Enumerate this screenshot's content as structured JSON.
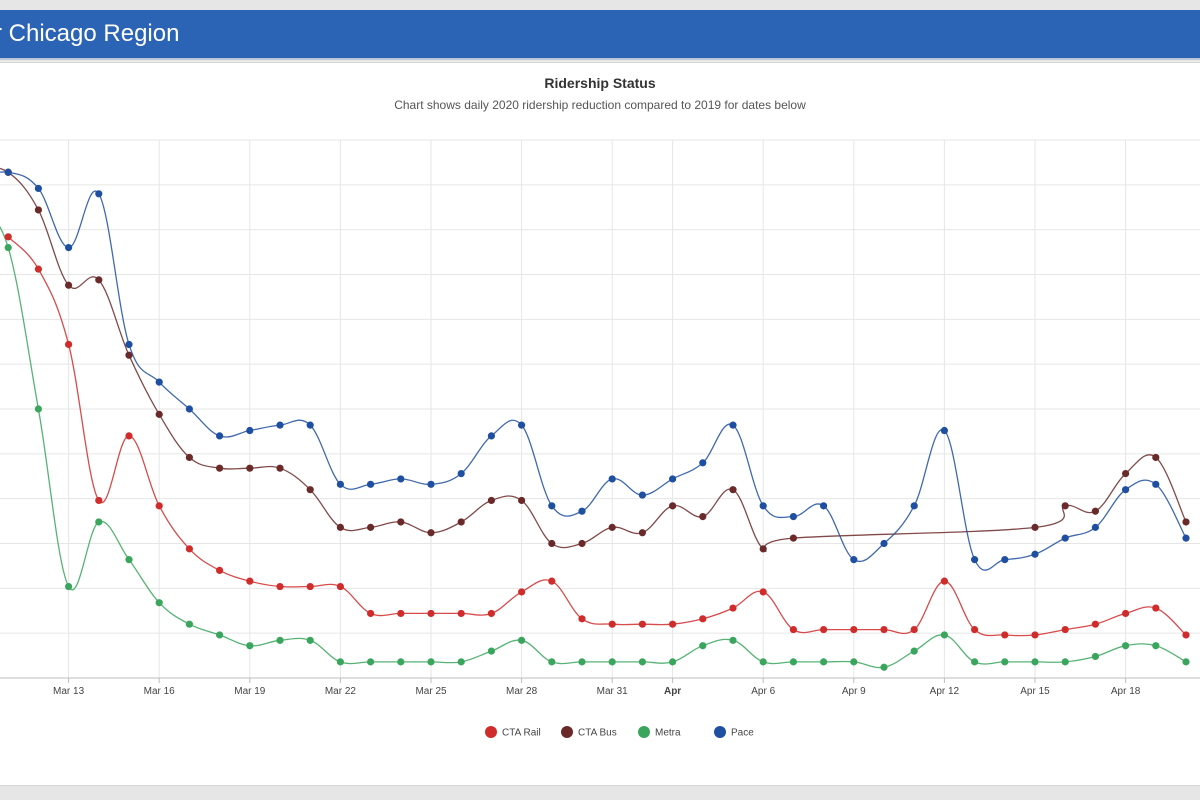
{
  "header": {
    "title": "r Chicago Region"
  },
  "chart_data": {
    "type": "line",
    "title": "Ridership Status",
    "subtitle": "Chart shows daily 2020 ridership reduction compared to 2019 for dates below",
    "x_range": [
      1,
      48
    ],
    "ylim": [
      0,
      100
    ],
    "y_axis_labels": "not visible",
    "grid": "on",
    "legend_position": "bottom-center",
    "tick_labels": [
      {
        "x": 3,
        "label": "Mar 13"
      },
      {
        "x": 6,
        "label": "Mar 16"
      },
      {
        "x": 9,
        "label": "Mar 19"
      },
      {
        "x": 12,
        "label": "Mar 22"
      },
      {
        "x": 15,
        "label": "Mar 25"
      },
      {
        "x": 18,
        "label": "Mar 28"
      },
      {
        "x": 21,
        "label": "Mar 31"
      },
      {
        "x": 23,
        "label": "Apr",
        "bold": true
      },
      {
        "x": 26,
        "label": "Apr 6"
      },
      {
        "x": 29,
        "label": "Apr 9"
      },
      {
        "x": 32,
        "label": "Apr 12"
      },
      {
        "x": 35,
        "label": "Apr 15"
      },
      {
        "x": 38,
        "label": "Apr 18"
      }
    ],
    "series": [
      {
        "name": "CTA Rail",
        "color": "#d02c2c",
        "x": [
          1,
          2,
          3,
          4,
          5,
          6,
          7,
          8,
          9,
          10,
          11,
          12,
          13,
          14,
          15,
          16,
          17,
          18,
          19,
          20,
          21,
          22,
          23,
          24,
          25,
          26,
          27,
          28,
          29,
          30,
          31,
          32,
          33,
          34,
          35,
          36,
          37,
          38,
          39,
          40
        ],
        "values": [
          82,
          76,
          62,
          33,
          45,
          32,
          24,
          20,
          18,
          17,
          17,
          17,
          12,
          12,
          12,
          12,
          12,
          16,
          18,
          11,
          10,
          10,
          10,
          11,
          13,
          16,
          9,
          9,
          9,
          9,
          9,
          18,
          9,
          8,
          8,
          9,
          10,
          12,
          13,
          8
        ]
      },
      {
        "name": "CTA Bus",
        "color": "#6b2a2a",
        "x": [
          0,
          1,
          2,
          3,
          4,
          5,
          6,
          7,
          8,
          9,
          10,
          11,
          12,
          13,
          14,
          15,
          16,
          17,
          18,
          19,
          20,
          21,
          22,
          23,
          24,
          25,
          26,
          27,
          35,
          36,
          37,
          38,
          39,
          40
        ],
        "values": [
          95,
          94,
          87,
          73,
          74,
          60,
          49,
          41,
          39,
          39,
          39,
          35,
          28,
          28,
          29,
          27,
          29,
          33,
          33,
          25,
          25,
          28,
          27,
          32,
          30,
          35,
          24,
          26,
          28,
          32,
          31,
          38,
          41,
          29
        ]
      },
      {
        "name": "Metra",
        "color": "#3aa65d",
        "x": [
          0,
          1,
          2,
          3,
          4,
          5,
          6,
          7,
          8,
          9,
          10,
          11,
          12,
          13,
          14,
          15,
          16,
          17,
          18,
          19,
          20,
          21,
          22,
          23,
          24,
          25,
          26,
          27,
          28,
          29,
          30,
          31,
          32,
          33,
          34,
          35,
          36,
          37,
          38,
          39,
          40
        ],
        "values": [
          88,
          80,
          50,
          17,
          29,
          22,
          14,
          10,
          8,
          6,
          7,
          7,
          3,
          3,
          3,
          3,
          3,
          5,
          7,
          3,
          3,
          3,
          3,
          3,
          6,
          7,
          3,
          3,
          3,
          3,
          2,
          5,
          8,
          3,
          3,
          3,
          3,
          4,
          6,
          6,
          3
        ]
      },
      {
        "name": "Pace",
        "color": "#1f4fa0",
        "x": [
          0,
          1,
          2,
          3,
          4,
          5,
          6,
          7,
          8,
          9,
          10,
          11,
          12,
          13,
          14,
          15,
          16,
          17,
          18,
          19,
          20,
          21,
          22,
          23,
          24,
          25,
          26,
          27,
          28,
          29,
          30,
          31,
          32,
          33,
          34,
          35,
          36,
          37,
          38,
          39,
          40
        ],
        "values": [
          93,
          94,
          91,
          80,
          90,
          62,
          55,
          50,
          45,
          46,
          47,
          47,
          36,
          36,
          37,
          36,
          38,
          45,
          47,
          32,
          31,
          37,
          34,
          37,
          40,
          47,
          32,
          30,
          32,
          22,
          25,
          32,
          46,
          22,
          22,
          23,
          26,
          28,
          35,
          36,
          26
        ]
      }
    ]
  }
}
